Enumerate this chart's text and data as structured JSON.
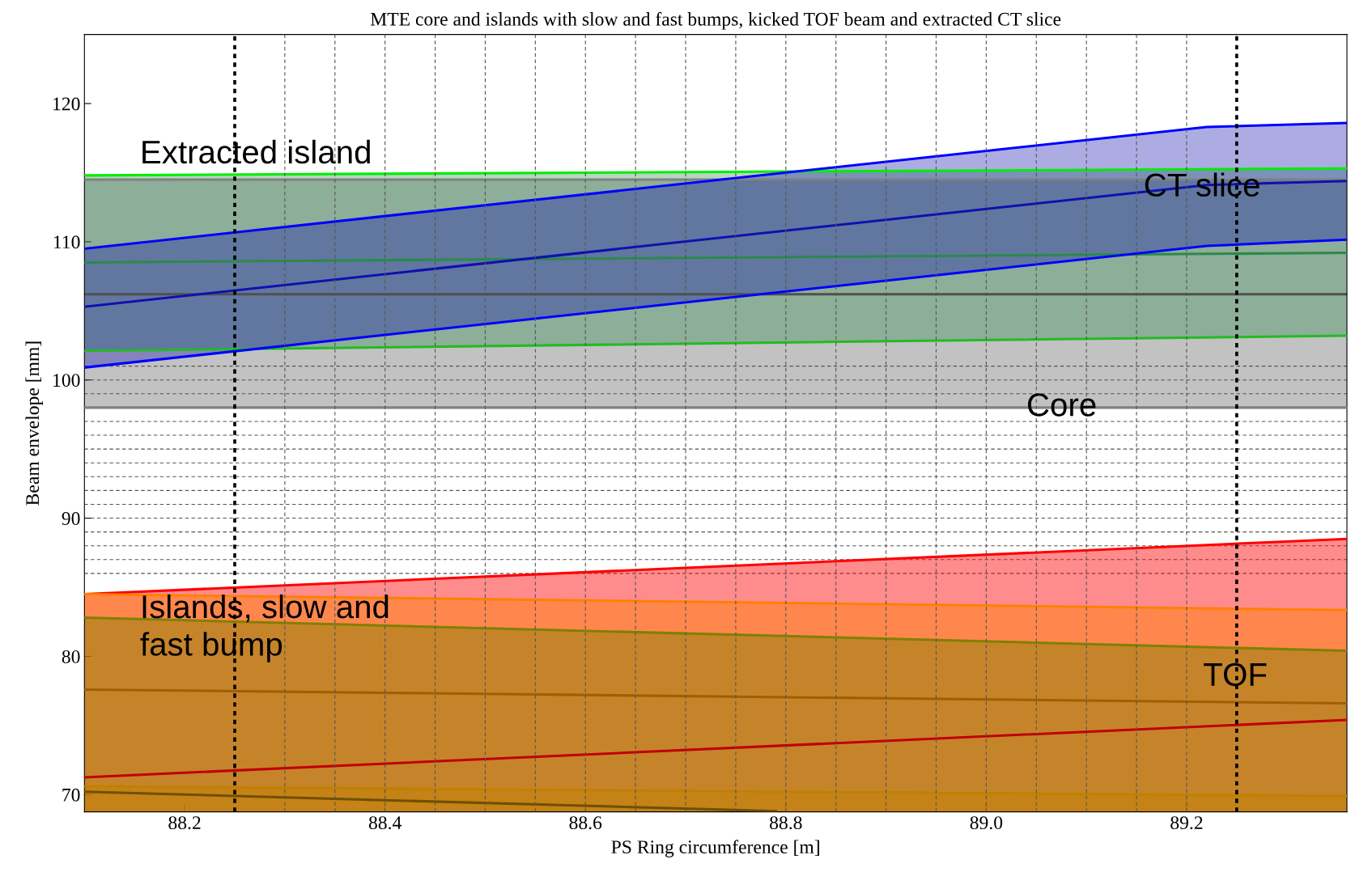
{
  "chart_data": {
    "type": "line",
    "title": "MTE core and islands with slow and fast bumps, kicked TOF beam and extracted CT slice",
    "xlabel": "PS Ring circumference [m]",
    "ylabel": "Beam envelope [mm]",
    "xlim": [
      88.1,
      89.36
    ],
    "ylim": [
      68.75,
      125
    ],
    "xticks": [
      88.2,
      88.4,
      88.6,
      88.8,
      {
        "value": 89.0,
        "label": "89.0"
      },
      89.2
    ],
    "yticks": [
      70,
      80,
      90,
      100,
      110,
      120
    ],
    "grid": false,
    "series": [
      {
        "color": "#505050",
        "x": [
          88.1,
          89.36
        ],
        "values": [
          106.2,
          106.2
        ],
        "lower": [
          98,
          98
        ],
        "upper": [
          114.5,
          114.5
        ]
      },
      {
        "color": "#808080",
        "x": [
          88.1,
          89.36
        ],
        "values": [
          98,
          98
        ]
      },
      {
        "color": "#808080",
        "x": [
          88.1,
          89.36
        ],
        "values": [
          114.5,
          114.5
        ]
      },
      {
        "color": "#2a8a4a",
        "x": [
          88.1,
          89.36
        ],
        "values": [
          108.5,
          109.2
        ],
        "lower": [
          102.1,
          103.2
        ],
        "upper": [
          114.8,
          115.3
        ]
      },
      {
        "color": "#22bb22",
        "x": [
          88.1,
          89.36
        ],
        "values": [
          102.1,
          103.2
        ]
      },
      {
        "color": "#00ee00",
        "x": [
          88.1,
          89.36
        ],
        "values": [
          114.8,
          115.3
        ]
      },
      {
        "color": "#1010b0",
        "x": [
          88.1,
          89.22,
          89.36
        ],
        "values": [
          105.3,
          114.1,
          114.4
        ],
        "lower": [
          100.9,
          109.7,
          110.15
        ],
        "upper": [
          109.5,
          118.3,
          118.6
        ]
      },
      {
        "color": "#0000ff",
        "x": [
          88.1,
          89.22,
          89.36
        ],
        "values": [
          100.9,
          109.7,
          110.15
        ]
      },
      {
        "color": "#0000ff",
        "x": [
          88.1,
          89.22,
          89.36
        ],
        "values": [
          109.5,
          118.3,
          118.6
        ]
      },
      {
        "type": "area",
        "color": "#ff0000",
        "x": [
          88.1,
          89.36
        ],
        "values": [
          84.5,
          88.5
        ]
      },
      {
        "type": "area",
        "color": "#ff8000",
        "x": [
          88.1,
          89.36
        ],
        "values": [
          84.5,
          83.35
        ]
      },
      {
        "type": "area",
        "color": "#808000",
        "x": [
          88.1,
          89.36
        ],
        "values": [
          82.8,
          80.4
        ]
      },
      {
        "type": "area",
        "color": "#c08000",
        "x": [
          88.1,
          89.36
        ],
        "values": [
          70.6,
          69.9
        ]
      },
      {
        "color": "#a06000",
        "x": [
          88.1,
          89.36
        ],
        "values": [
          77.6,
          76.6
        ]
      },
      {
        "color": "#c00000",
        "x": [
          88.1,
          89.36
        ],
        "values": [
          71.25,
          75.4
        ]
      },
      {
        "color": "#705000",
        "x": [
          88.1,
          88.79
        ],
        "values": [
          70.2,
          68.8
        ]
      }
    ],
    "ref_lines": [
      {
        "axis": "x",
        "value": 88.25,
        "color": "#000000",
        "line_style": "dotted"
      },
      {
        "axis": "x",
        "value": 89.25,
        "color": "#000000",
        "line_style": "dotted"
      },
      {
        "axis": "x",
        "value": 88.3,
        "line_style": "dashed"
      },
      {
        "axis": "x",
        "value": 88.35,
        "line_style": "dashed"
      },
      {
        "axis": "x",
        "value": 88.4,
        "line_style": "dashed"
      },
      {
        "axis": "x",
        "value": 88.45,
        "line_style": "dashed"
      },
      {
        "axis": "x",
        "value": 88.5,
        "line_style": "dashed"
      },
      {
        "axis": "x",
        "value": 88.55,
        "line_style": "dashed"
      },
      {
        "axis": "x",
        "value": 88.6,
        "line_style": "dashed"
      },
      {
        "axis": "x",
        "value": 88.65,
        "line_style": "dashed"
      },
      {
        "axis": "x",
        "value": 88.7,
        "line_style": "dashed"
      },
      {
        "axis": "x",
        "value": 88.75,
        "line_style": "dashed"
      },
      {
        "axis": "x",
        "value": 88.8,
        "line_style": "dashed"
      },
      {
        "axis": "x",
        "value": 88.85,
        "line_style": "dashed"
      },
      {
        "axis": "x",
        "value": 88.9,
        "line_style": "dashed"
      },
      {
        "axis": "x",
        "value": 88.95,
        "line_style": "dashed"
      },
      {
        "axis": "x",
        "value": 89.0,
        "line_style": "dashed"
      },
      {
        "axis": "x",
        "value": 89.05,
        "line_style": "dashed"
      },
      {
        "axis": "x",
        "value": 89.1,
        "line_style": "dashed"
      },
      {
        "axis": "x",
        "value": 89.15,
        "line_style": "dashed"
      },
      {
        "axis": "x",
        "value": 89.2,
        "line_style": "dashed"
      },
      {
        "axis": "y",
        "value": 86,
        "line_style": "dashed"
      },
      {
        "axis": "y",
        "value": 87,
        "line_style": "dashed"
      },
      {
        "axis": "y",
        "value": 88,
        "line_style": "dashed"
      },
      {
        "axis": "y",
        "value": 89,
        "line_style": "dashed"
      },
      {
        "axis": "y",
        "value": 90,
        "line_style": "dashed"
      },
      {
        "axis": "y",
        "value": 91,
        "line_style": "dashed"
      },
      {
        "axis": "y",
        "value": 92,
        "line_style": "dashed"
      },
      {
        "axis": "y",
        "value": 93,
        "line_style": "dashed"
      },
      {
        "axis": "y",
        "value": 94,
        "line_style": "dashed"
      },
      {
        "axis": "y",
        "value": 95,
        "line_style": "dashed"
      },
      {
        "axis": "y",
        "value": 96,
        "line_style": "dashed"
      },
      {
        "axis": "y",
        "value": 97,
        "line_style": "dashed"
      },
      {
        "axis": "y",
        "value": 99,
        "line_style": "dashed"
      },
      {
        "axis": "y",
        "value": 100,
        "line_style": "dashed"
      },
      {
        "axis": "y",
        "value": 101,
        "line_style": "dashed"
      }
    ],
    "annotations": [
      "Extracted island",
      {
        "text": "CT slice",
        "x": 89.157,
        "y": 113.9
      },
      {
        "text": "Core",
        "x": 89.04,
        "y": 98
      },
      "Islands, slow and\nfast bump",
      "TOF"
    ]
  }
}
